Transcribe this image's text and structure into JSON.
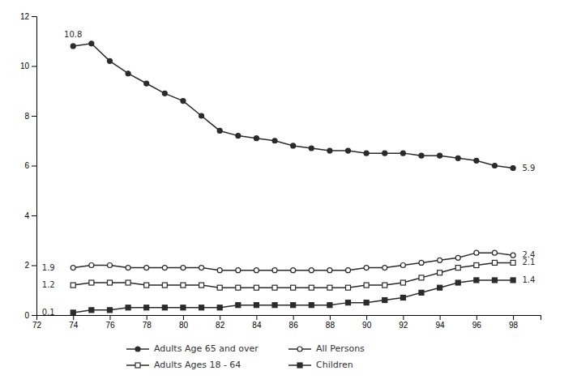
{
  "chart_data": {
    "type": "line",
    "x": [
      74,
      75,
      76,
      77,
      78,
      79,
      80,
      81,
      82,
      83,
      84,
      85,
      86,
      87,
      88,
      89,
      90,
      91,
      92,
      93,
      94,
      95,
      96,
      97,
      98
    ],
    "series": [
      {
        "name": "Adults Age 65 and over",
        "color": "#2b2b2b",
        "marker": "circle",
        "values": [
          10.8,
          10.9,
          10.2,
          9.7,
          9.3,
          8.9,
          8.6,
          8.0,
          7.4,
          7.2,
          7.1,
          7.0,
          6.8,
          6.7,
          6.6,
          6.6,
          6.5,
          6.5,
          6.5,
          6.4,
          6.4,
          6.3,
          6.2,
          6.0,
          5.9
        ]
      },
      {
        "name": "All Persons",
        "color": "#2b2b2b",
        "marker": "circle-open",
        "values": [
          1.9,
          2.0,
          2.0,
          1.9,
          1.9,
          1.9,
          1.9,
          1.9,
          1.8,
          1.8,
          1.8,
          1.8,
          1.8,
          1.8,
          1.8,
          1.8,
          1.9,
          1.9,
          2.0,
          2.1,
          2.2,
          2.3,
          2.5,
          2.5,
          2.4
        ]
      },
      {
        "name": "Adults Ages 18 - 64",
        "color": "#2b2b2b",
        "marker": "square-open",
        "values": [
          1.2,
          1.3,
          1.3,
          1.3,
          1.2,
          1.2,
          1.2,
          1.2,
          1.1,
          1.1,
          1.1,
          1.1,
          1.1,
          1.1,
          1.1,
          1.1,
          1.2,
          1.2,
          1.3,
          1.5,
          1.7,
          1.9,
          2.0,
          2.1,
          2.1
        ]
      },
      {
        "name": "Children",
        "color": "#2b2b2b",
        "marker": "square",
        "values": [
          0.1,
          0.2,
          0.2,
          0.3,
          0.3,
          0.3,
          0.3,
          0.3,
          0.3,
          0.4,
          0.4,
          0.4,
          0.4,
          0.4,
          0.4,
          0.5,
          0.5,
          0.6,
          0.7,
          0.9,
          1.1,
          1.3,
          1.4,
          1.4,
          1.4
        ]
      }
    ],
    "annotations": [
      {
        "text": "10.8",
        "x": 74,
        "y": 11.15
      },
      {
        "text": "1.9",
        "x": 72.3,
        "y": 1.9
      },
      {
        "text": "1.2",
        "x": 72.3,
        "y": 1.2
      },
      {
        "text": "0.1",
        "x": 72.3,
        "y": 0.1
      },
      {
        "text": "5.9",
        "x": 98.5,
        "y": 5.9
      },
      {
        "text": "2.4",
        "x": 98.5,
        "y": 2.4
      },
      {
        "text": "2.1",
        "x": 98.5,
        "y": 2.1
      },
      {
        "text": "1.4",
        "x": 98.5,
        "y": 1.4
      }
    ],
    "xlim": [
      72,
      99.5
    ],
    "ylim": [
      0,
      12
    ],
    "xticks": [
      72,
      74,
      76,
      78,
      80,
      82,
      84,
      86,
      88,
      90,
      92,
      94,
      96,
      98
    ],
    "yticks": [
      0,
      2,
      4,
      6,
      8,
      10,
      12
    ],
    "grid": false,
    "legend": "bottom"
  }
}
